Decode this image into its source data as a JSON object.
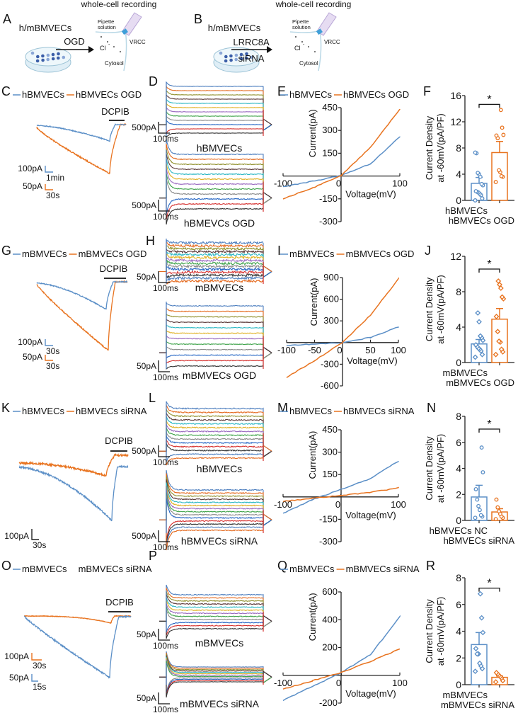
{
  "colors": {
    "blue": "#5b8fc7",
    "orange": "#e8731f",
    "axis": "#222222",
    "step_palette": [
      "#4e7fbf",
      "#e46a1f",
      "#8f8f2a",
      "#5a3838",
      "#2fb8c4",
      "#e0b020",
      "#9a6ac0",
      "#3fa34a",
      "#8a8a8a",
      "#2364c4",
      "#d6312f",
      "#333333"
    ]
  },
  "schematics": [
    {
      "letter": "A",
      "title": "whole-cell recording",
      "cells": "h/mBMVECs",
      "treatment": [
        "OGD"
      ],
      "pipette": [
        "Pipette",
        "solution"
      ],
      "channel": "VRCC",
      "ion": "Cl",
      "ion_charge": "-",
      "compartment": "Cytosol"
    },
    {
      "letter": "B",
      "title": "whole-cell recording",
      "cells": "h/mBMVECs",
      "treatment": [
        "LRRC8A",
        "siRNA"
      ],
      "pipette": [
        "Pipette",
        "solution"
      ],
      "channel": "VRCC",
      "ion": "Cl",
      "ion_charge": "-",
      "compartment": "Cytosol"
    }
  ],
  "traces": [
    {
      "letter": "C",
      "legend": [
        "hBMVECs",
        "hBMVECs OGD"
      ],
      "legend_lines": [
        true,
        true
      ],
      "drug": "DCPIB",
      "scales": [
        {
          "amp": "100pA",
          "time": "1min",
          "color": "blue"
        },
        {
          "amp": "50pA",
          "time": "30s",
          "color": "orange"
        }
      ]
    },
    {
      "letter": "G",
      "legend": [
        "mBMVECs",
        "mBMVECs OGD"
      ],
      "legend_lines": [
        true,
        true
      ],
      "drug": "DCPIB",
      "scales": [
        {
          "amp": "100pA",
          "time": "30s",
          "color": "blue"
        },
        {
          "amp": "50pA",
          "time": "30s",
          "color": "orange"
        }
      ]
    },
    {
      "letter": "K",
      "legend": [
        "hBMVECs",
        "hBMVECs siRNA"
      ],
      "legend_lines": [
        true,
        true
      ],
      "drug": "DCPIB",
      "scales": [
        {
          "amp": "100pA",
          "time": "30s",
          "color": "axis"
        }
      ]
    },
    {
      "letter": "O",
      "legend": [
        "mBMVECs",
        "mBMVECs siRNA"
      ],
      "legend_lines": [
        true,
        false
      ],
      "drug": "DCPIB",
      "scales": [
        {
          "amp": "100pA",
          "time": "30s",
          "color": "orange"
        },
        {
          "amp": "50pA",
          "time": "15s",
          "color": "blue"
        }
      ]
    }
  ],
  "steps": [
    {
      "letter": "D",
      "upper": {
        "amp": "500pA",
        "time": "100ms",
        "caption": "hBMVECs"
      },
      "lower": {
        "amp": "500pA",
        "time": "100ms",
        "caption": "hBMEVCs OGD"
      }
    },
    {
      "letter": "H",
      "upper": {
        "amp": "50pA",
        "time": "100ms",
        "caption": "mBMVECs"
      },
      "lower": {
        "amp": "50pA",
        "time": "100ms",
        "caption": "mBMVECs OGD"
      }
    },
    {
      "letter": "L",
      "upper": {
        "amp": "500pA",
        "time": "100ms",
        "caption": "hBMVECs"
      },
      "lower": {
        "amp": "500pA",
        "time": "100ms",
        "caption": "hBMVECs siRNA"
      }
    },
    {
      "letter": "P",
      "upper": {
        "amp": "50pA",
        "time": "100ms",
        "caption": "mBMVECs"
      },
      "lower": {
        "amp": "50pA",
        "time": "100ms",
        "caption": "mBMVECs siRNA"
      }
    }
  ],
  "chart_data": [
    {
      "type": "line",
      "panel": "E",
      "xlabel": "Voltage(mV)",
      "ylabel": "Current(pA)",
      "xlim": [
        -100,
        100
      ],
      "ylim": [
        -300,
        450
      ],
      "xticks": [
        -100,
        0,
        100
      ],
      "yticks": [
        450,
        300,
        150,
        -150,
        -300
      ],
      "legend": "top",
      "series": [
        {
          "name": "hBMVECs",
          "color": "blue",
          "x": [
            -100,
            -50,
            0,
            50,
            100
          ],
          "y": [
            -70,
            -35,
            5,
            80,
            260
          ]
        },
        {
          "name": "hBMVECs OGD",
          "color": "orange",
          "x": [
            -100,
            -50,
            0,
            50,
            100
          ],
          "y": [
            -150,
            -80,
            5,
            190,
            440
          ]
        }
      ]
    },
    {
      "type": "line",
      "panel": "I",
      "xlabel": "Voltage(mV)",
      "ylabel": "Current(pA)",
      "xlim": [
        -100,
        100
      ],
      "ylim": [
        -600,
        900
      ],
      "xticks": [
        -100,
        -50,
        0,
        50,
        100
      ],
      "yticks": [
        900,
        600,
        300,
        -300,
        -600
      ],
      "legend": "top",
      "series": [
        {
          "name": "mBMVECs",
          "color": "blue",
          "x": [
            -100,
            -50,
            0,
            50,
            100
          ],
          "y": [
            -40,
            -20,
            0,
            70,
            220
          ]
        },
        {
          "name": "mBMVECs OGD",
          "color": "orange",
          "x": [
            -100,
            -50,
            0,
            50,
            100
          ],
          "y": [
            -480,
            -250,
            0,
            380,
            880
          ]
        }
      ]
    },
    {
      "type": "line",
      "panel": "M",
      "xlabel": "Voltage(mV)",
      "ylabel": "Current(pA)",
      "xlim": [
        -100,
        100
      ],
      "ylim": [
        -300,
        450
      ],
      "xticks": [
        -100,
        0,
        100
      ],
      "yticks": [
        450,
        300,
        150,
        -150,
        -300
      ],
      "legend": "top",
      "series": [
        {
          "name": "hBMVECs",
          "color": "blue",
          "x": [
            -100,
            -50,
            0,
            50,
            100
          ],
          "y": [
            -110,
            -20,
            50,
            120,
            240
          ]
        },
        {
          "name": "hBMVECs siRNA",
          "color": "orange",
          "x": [
            -100,
            -50,
            0,
            50,
            100
          ],
          "y": [
            -30,
            -10,
            10,
            30,
            60
          ]
        }
      ]
    },
    {
      "type": "line",
      "panel": "Q",
      "xlabel": "Voltage(mV)",
      "ylabel": "Current(pA)",
      "xlim": [
        -100,
        100
      ],
      "ylim": [
        -200,
        600
      ],
      "xticks": [
        -100,
        0,
        100
      ],
      "yticks": [
        600,
        400,
        200,
        -200
      ],
      "legend": "top",
      "series": [
        {
          "name": "mBMVECs",
          "color": "blue",
          "x": [
            -100,
            -50,
            0,
            50,
            100
          ],
          "y": [
            -180,
            -80,
            20,
            150,
            420
          ]
        },
        {
          "name": "mBMVECs siRNA",
          "color": "orange",
          "x": [
            -100,
            -50,
            0,
            50,
            100
          ],
          "y": [
            -100,
            -40,
            20,
            100,
            190
          ]
        }
      ]
    },
    {
      "type": "bar",
      "panel": "F",
      "ylabel": [
        "Current Density",
        "at -60mV(pA/PF)"
      ],
      "ylim": [
        0,
        16
      ],
      "yticks": [
        0,
        4,
        8,
        12,
        16
      ],
      "categories": [
        "hBMVECs",
        "hBMVECs OGD"
      ],
      "values": [
        2.6,
        7.3
      ],
      "sem": [
        0.9,
        1.7
      ],
      "marker": "circle",
      "significance": "*",
      "points": [
        [
          0,
          0.3,
          0.8,
          1.0,
          1.2,
          1.3,
          1.4,
          2.3,
          2.5,
          3.6,
          4.0,
          4.2,
          7.2,
          7.3
        ],
        [
          2.8,
          3.6,
          3.7,
          4.3,
          4.6,
          9.5,
          9.9,
          10.0,
          11.1,
          13.8
        ]
      ]
    },
    {
      "type": "bar",
      "panel": "J",
      "ylabel": [
        "Current Density",
        "at -60mV(pA/PF)"
      ],
      "ylim": [
        0,
        12
      ],
      "yticks": [
        0,
        4,
        8,
        12
      ],
      "categories": [
        "mBMVECs",
        "mBMVECs OGD"
      ],
      "values": [
        2.1,
        4.9
      ],
      "sem": [
        0.5,
        1.2
      ],
      "marker": "diamond",
      "significance": "*",
      "points": [
        [
          0.6,
          0.9,
          1.3,
          1.5,
          1.6,
          1.8,
          2.0,
          2.5,
          2.8,
          3.0,
          4.6,
          5.6
        ],
        [
          0.9,
          1.2,
          1.5,
          2.3,
          2.4,
          3.5,
          5.2,
          7.2,
          7.4,
          8.4,
          8.8,
          9.2
        ]
      ]
    },
    {
      "type": "bar",
      "panel": "N",
      "ylabel": [
        "Current Density",
        "at -60mV(pA/PF)"
      ],
      "ylim": [
        0,
        8
      ],
      "yticks": [
        0,
        2,
        4,
        6,
        8
      ],
      "categories": [
        "hBMVECs NC",
        "hBMVECs siRNA"
      ],
      "values": [
        1.8,
        0.65
      ],
      "sem": [
        0.9,
        0.25
      ],
      "marker": "circle",
      "significance": "*",
      "points": [
        [
          0.2,
          0.3,
          0.4,
          0.8,
          1.1,
          1.6,
          2.4,
          3.7,
          5.6
        ],
        [
          0.1,
          0.2,
          0.3,
          0.5,
          0.7,
          1.0,
          1.6
        ]
      ]
    },
    {
      "type": "bar",
      "panel": "R",
      "ylabel": [
        "Current Density",
        "at -60mV(pA/PF)"
      ],
      "ylim": [
        0,
        8
      ],
      "yticks": [
        0,
        2,
        4,
        6,
        8
      ],
      "categories": [
        "mBMVECs",
        "mBMVECs siRNA"
      ],
      "values": [
        3.0,
        0.55
      ],
      "sem": [
        0.9,
        0.1
      ],
      "marker": "diamond",
      "significance": "*",
      "points": [
        [
          1.0,
          1.2,
          1.4,
          1.6,
          2.3,
          2.3,
          2.7,
          3.9,
          5.0,
          6.8
        ],
        [
          0.2,
          0.3,
          0.5,
          0.6,
          0.7,
          0.8,
          0.9
        ]
      ]
    }
  ]
}
